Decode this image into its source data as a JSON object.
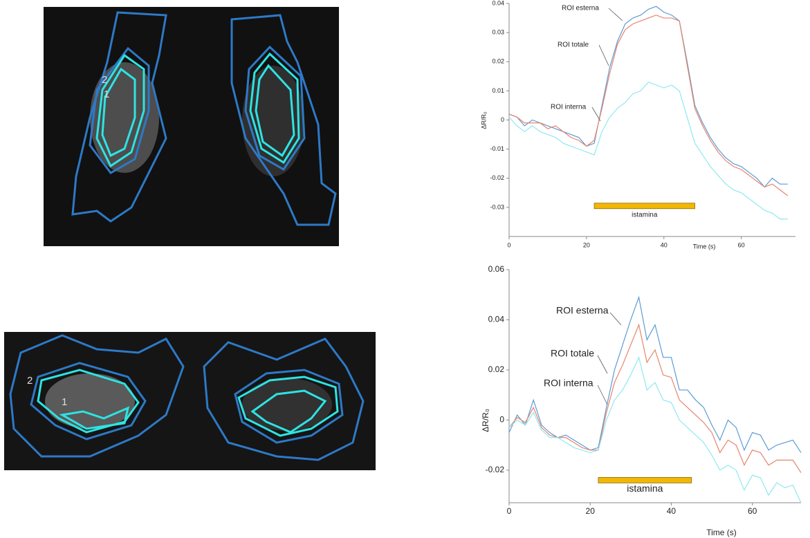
{
  "images": [
    {
      "labels": [
        "2",
        "1"
      ]
    },
    {
      "labels": [
        "2",
        "1"
      ]
    }
  ],
  "chart_data": [
    {
      "type": "line",
      "xlabel": "Time (s)",
      "ylabel": "ΔR/R₀",
      "xlim": [
        0,
        74
      ],
      "xticks": [
        0,
        20,
        40,
        60
      ],
      "ylim": [
        -0.04,
        0.04
      ],
      "yticks": [
        0.04,
        0.03,
        0.02,
        0.01,
        0,
        -0.01,
        -0.02,
        -0.03
      ],
      "x": [
        0,
        2,
        4,
        6,
        8,
        10,
        12,
        14,
        16,
        18,
        20,
        22,
        24,
        26,
        28,
        30,
        32,
        34,
        36,
        38,
        40,
        42,
        44,
        46,
        48,
        50,
        52,
        54,
        56,
        58,
        60,
        62,
        64,
        66,
        68,
        70,
        72
      ],
      "series": [
        {
          "name": "ROI esterna",
          "color": "#5b9bd5",
          "values": [
            0.002,
            0.001,
            -0.002,
            0,
            -0.001,
            -0.002,
            -0.003,
            -0.004,
            -0.005,
            -0.006,
            -0.009,
            -0.008,
            0.005,
            0.018,
            0.027,
            0.033,
            0.035,
            0.036,
            0.038,
            0.039,
            0.037,
            0.036,
            0.034,
            0.02,
            0.005,
            -0.001,
            -0.006,
            -0.01,
            -0.013,
            -0.015,
            -0.016,
            -0.018,
            -0.02,
            -0.023,
            -0.02,
            -0.022,
            -0.022
          ]
        },
        {
          "name": "ROI totale",
          "color": "#e8836b",
          "values": [
            0.002,
            0.001,
            -0.001,
            -0.001,
            -0.001,
            -0.003,
            -0.002,
            -0.004,
            -0.006,
            -0.007,
            -0.009,
            -0.007,
            0.004,
            0.016,
            0.026,
            0.031,
            0.033,
            0.034,
            0.035,
            0.036,
            0.035,
            0.035,
            0.034,
            0.019,
            0.004,
            -0.002,
            -0.007,
            -0.011,
            -0.014,
            -0.016,
            -0.017,
            -0.019,
            -0.021,
            -0.023,
            -0.022,
            -0.024,
            -0.026
          ]
        },
        {
          "name": "ROI interna",
          "color": "#8ee8f2",
          "values": [
            0.001,
            -0.002,
            -0.004,
            -0.002,
            -0.004,
            -0.005,
            -0.006,
            -0.008,
            -0.009,
            -0.01,
            -0.011,
            -0.012,
            -0.004,
            0.001,
            0.004,
            0.006,
            0.009,
            0.01,
            0.013,
            0.012,
            0.011,
            0.012,
            0.01,
            0.001,
            -0.008,
            -0.012,
            -0.016,
            -0.019,
            -0.022,
            -0.024,
            -0.025,
            -0.027,
            -0.029,
            -0.031,
            -0.032,
            -0.034,
            -0.034
          ]
        }
      ],
      "annotation_bar": {
        "text": "istamina",
        "start": 22,
        "end": 48,
        "value": -0.0295,
        "color": "#f2b705"
      }
    },
    {
      "type": "line",
      "xlabel": "Time (s)",
      "ylabel": "ΔR/R₀",
      "xlim": [
        0,
        72
      ],
      "xticks": [
        0,
        20,
        40,
        60
      ],
      "ylim": [
        -0.033,
        0.06
      ],
      "yticks": [
        0.06,
        0.04,
        0.02,
        0,
        -0.02
      ],
      "x": [
        0,
        2,
        4,
        6,
        8,
        10,
        12,
        14,
        16,
        18,
        20,
        22,
        24,
        26,
        28,
        30,
        32,
        34,
        36,
        38,
        40,
        42,
        44,
        46,
        48,
        50,
        52,
        54,
        56,
        58,
        60,
        62,
        64,
        66,
        68,
        70,
        72
      ],
      "series": [
        {
          "name": "ROI esterna",
          "color": "#5b9bd5",
          "values": [
            -0.005,
            0.002,
            -0.002,
            0.008,
            -0.002,
            -0.005,
            -0.007,
            -0.006,
            -0.008,
            -0.01,
            -0.012,
            -0.011,
            0.005,
            0.02,
            0.03,
            0.04,
            0.049,
            0.032,
            0.038,
            0.025,
            0.025,
            0.012,
            0.012,
            0.008,
            0.005,
            -0.002,
            -0.008,
            0.0,
            -0.003,
            -0.012,
            -0.005,
            -0.006,
            -0.012,
            -0.01,
            -0.009,
            -0.008,
            -0.013
          ]
        },
        {
          "name": "ROI totale",
          "color": "#e8836b",
          "values": [
            -0.003,
            0.001,
            -0.001,
            0.005,
            -0.003,
            -0.006,
            -0.007,
            -0.007,
            -0.009,
            -0.011,
            -0.012,
            -0.012,
            0.003,
            0.015,
            0.022,
            0.03,
            0.038,
            0.023,
            0.028,
            0.018,
            0.017,
            0.008,
            0.005,
            0.002,
            -0.001,
            -0.005,
            -0.013,
            -0.008,
            -0.01,
            -0.018,
            -0.012,
            -0.013,
            -0.018,
            -0.016,
            -0.016,
            -0.016,
            -0.021
          ]
        },
        {
          "name": "ROI interna",
          "color": "#8ee8f2",
          "values": [
            -0.003,
            0.0,
            -0.002,
            0.003,
            -0.004,
            -0.007,
            -0.007,
            -0.009,
            -0.011,
            -0.012,
            -0.013,
            -0.012,
            0.0,
            0.008,
            0.012,
            0.018,
            0.025,
            0.012,
            0.015,
            0.008,
            0.007,
            0.0,
            -0.003,
            -0.006,
            -0.009,
            -0.014,
            -0.02,
            -0.018,
            -0.02,
            -0.028,
            -0.022,
            -0.023,
            -0.03,
            -0.025,
            -0.027,
            -0.026,
            -0.033
          ]
        }
      ],
      "annotation_bar": {
        "text": "istamina",
        "start": 22,
        "end": 45,
        "value": -0.024,
        "color": "#f2b705"
      }
    }
  ]
}
